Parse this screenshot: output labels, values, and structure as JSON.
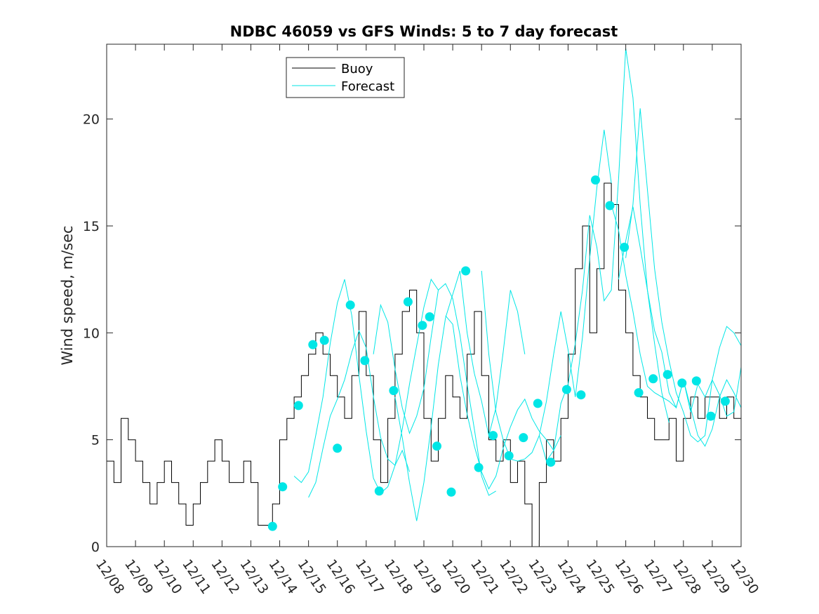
{
  "chart_data": {
    "type": "line",
    "title": "NDBC 46059 vs GFS Winds: 5 to 7 day forecast",
    "xlabel": "",
    "ylabel": "Wind speed, m/sec",
    "xlim": [
      0,
      22
    ],
    "ylim": [
      0,
      23.5
    ],
    "x_tick_labels": [
      "12/08",
      "12/09",
      "12/10",
      "12/11",
      "12/12",
      "12/13",
      "12/14",
      "12/15",
      "12/16",
      "12/17",
      "12/18",
      "12/19",
      "12/20",
      "12/21",
      "12/22",
      "12/23",
      "12/24",
      "12/25",
      "12/26",
      "12/27",
      "12/28",
      "12/29",
      "12/30"
    ],
    "y_ticks": [
      0,
      5,
      10,
      15,
      20
    ],
    "grid": false,
    "legend_position": "top-left",
    "colors": {
      "buoy": "#000000",
      "forecast": "#00e6e6",
      "axis": "#262626"
    },
    "buoy_series": {
      "name": "Buoy",
      "x": [
        0.0,
        0.25,
        0.5,
        0.75,
        1.0,
        1.25,
        1.5,
        1.75,
        2.0,
        2.25,
        2.5,
        2.75,
        3.0,
        3.25,
        3.5,
        3.75,
        4.0,
        4.25,
        4.5,
        4.75,
        5.0,
        5.25,
        5.5,
        5.75,
        6.0,
        6.25,
        6.5,
        6.75,
        7.0,
        7.25,
        7.5,
        7.75,
        8.0,
        8.25,
        8.5,
        8.75,
        9.0,
        9.25,
        9.5,
        9.75,
        10.0,
        10.25,
        10.5,
        10.75,
        11.0,
        11.25,
        11.5,
        11.75,
        12.0,
        12.25,
        12.5,
        12.75,
        13.0,
        13.25,
        13.5,
        13.75,
        14.0,
        14.25,
        14.5,
        14.75,
        15.0,
        15.25,
        15.5,
        15.75,
        16.0,
        16.25,
        16.5,
        16.75,
        17.0,
        17.25,
        17.5,
        17.75,
        18.0,
        18.25,
        18.5,
        18.75,
        19.0,
        19.25,
        19.5,
        19.75,
        20.0,
        20.25,
        20.5,
        20.75,
        21.0,
        21.25,
        21.5,
        21.75,
        22.0
      ],
      "values": [
        4,
        3,
        6,
        5,
        4,
        3,
        2,
        3,
        4,
        3,
        2,
        1,
        2,
        3,
        4,
        5,
        4,
        3,
        3,
        4,
        3,
        1,
        1,
        2,
        5,
        6,
        7,
        8,
        9,
        10,
        9,
        8,
        7,
        6,
        8,
        11,
        8,
        5,
        3,
        6,
        9,
        11,
        12,
        10,
        6,
        4,
        6,
        8,
        7,
        6,
        9,
        11,
        8,
        5,
        4,
        5,
        3,
        4,
        2,
        0,
        3,
        5,
        4,
        6,
        9,
        13,
        15,
        10,
        13,
        17,
        16,
        12,
        10,
        8,
        7,
        6,
        5,
        5,
        6,
        4,
        6,
        7,
        6,
        7,
        7,
        6,
        7,
        6,
        7
      ]
    },
    "forecast_series": [
      {
        "name": "Forecast",
        "x": [
          6.5,
          6.75,
          7.0,
          7.25,
          7.5,
          7.75,
          8.0,
          8.25,
          8.5,
          8.75,
          9.0,
          9.25,
          9.5,
          9.75,
          10.0,
          10.25,
          10.5
        ],
        "values": [
          3.3,
          3.0,
          3.5,
          5.2,
          7.0,
          9.5,
          11.4,
          12.5,
          10.8,
          8.0,
          5.4,
          3.2,
          2.5,
          2.8,
          3.8,
          4.5,
          3.5
        ]
      },
      {
        "name": "Forecast",
        "x": [
          7.0,
          7.25,
          7.5,
          7.75,
          8.0,
          8.25,
          8.5,
          8.75,
          9.0,
          9.25,
          9.5,
          9.75,
          10.0,
          10.25,
          10.5,
          10.75,
          11.0,
          11.25,
          11.5
        ],
        "values": [
          2.3,
          3.0,
          4.6,
          6.1,
          6.9,
          7.8,
          9.1,
          10.1,
          9.3,
          7.0,
          5.1,
          4.1,
          3.8,
          5.5,
          7.6,
          9.4,
          11.2,
          12.5,
          12.0
        ]
      },
      {
        "name": "Forecast",
        "x": [
          9.25,
          9.5,
          9.75,
          10.0,
          10.25,
          10.5,
          10.75,
          11.0,
          11.25,
          11.5,
          11.75,
          12.0,
          12.25,
          12.5,
          12.75,
          13.0,
          13.25,
          13.5
        ],
        "values": [
          9.0,
          11.3,
          10.5,
          8.3,
          6.5,
          5.3,
          6.1,
          7.4,
          9.8,
          12.0,
          12.3,
          11.6,
          9.9,
          7.6,
          5.5,
          3.3,
          2.4,
          2.6
        ]
      },
      {
        "name": "Forecast",
        "x": [
          10.0,
          10.25,
          10.5,
          10.75,
          11.0,
          11.25,
          11.5,
          11.75,
          12.0,
          12.25,
          12.5,
          12.75,
          13.0,
          13.25,
          13.5,
          13.75,
          14.0,
          14.25,
          14.5
        ],
        "values": [
          7.0,
          5.1,
          3.0,
          1.2,
          3.0,
          5.6,
          8.5,
          10.7,
          11.8,
          12.9,
          10.0,
          8.1,
          6.8,
          5.2,
          6.5,
          9.1,
          12.0,
          11.0,
          9.0
        ]
      },
      {
        "name": "Forecast",
        "x": [
          11.75,
          12.0,
          12.25,
          12.5,
          12.75,
          13.0,
          13.25,
          13.5,
          13.75,
          14.0,
          14.25,
          14.5,
          14.75,
          15.0,
          15.25,
          15.5,
          15.75
        ],
        "values": [
          10.8,
          10.4,
          8.0,
          6.2,
          4.7,
          3.5,
          2.7,
          3.3,
          4.6,
          5.6,
          6.4,
          6.9,
          6.0,
          5.4,
          5.0,
          4.5,
          5.2
        ]
      },
      {
        "name": "Forecast",
        "x": [
          13.0,
          13.25,
          13.5,
          13.75,
          14.0,
          14.25,
          14.5,
          14.75,
          15.0,
          15.25,
          15.5,
          15.75,
          16.0,
          16.25,
          16.5,
          16.75,
          17.0,
          17.25,
          17.5
        ],
        "values": [
          12.9,
          9.0,
          6.3,
          5.0,
          4.1,
          4.0,
          4.1,
          4.4,
          5.2,
          6.8,
          9.0,
          11.0,
          9.2,
          7.0,
          9.8,
          13.5,
          16.8,
          19.5,
          17.0
        ]
      },
      {
        "name": "Forecast",
        "x": [
          15.0,
          15.25,
          15.5,
          15.75,
          16.0,
          16.25,
          16.5,
          16.75,
          17.0,
          17.25,
          17.5,
          17.75,
          18.0,
          18.25,
          18.5,
          18.75,
          19.0,
          19.25,
          19.5
        ],
        "values": [
          5.2,
          4.0,
          4.5,
          6.7,
          7.6,
          9.5,
          12.0,
          15.5,
          14.0,
          11.5,
          12.0,
          17.2,
          23.3,
          21.0,
          16.0,
          12.0,
          9.5,
          7.2,
          5.8
        ]
      },
      {
        "name": "Forecast",
        "x": [
          17.5,
          17.75,
          18.0,
          18.25,
          18.5,
          18.75,
          19.0,
          19.25,
          19.5,
          19.75,
          20.0,
          20.25,
          20.5,
          20.75,
          21.0,
          21.25,
          21.5,
          21.75,
          22.0
        ],
        "values": [
          16.0,
          14.8,
          12.7,
          11.0,
          9.0,
          7.5,
          7.2,
          7.0,
          6.8,
          6.5,
          7.8,
          6.5,
          5.2,
          4.7,
          5.5,
          7.0,
          7.8,
          7.2,
          6.5
        ]
      },
      {
        "name": "Forecast",
        "x": [
          18.0,
          18.25,
          18.5,
          18.75,
          19.0,
          19.25,
          19.5,
          19.75,
          20.0,
          20.25,
          20.5,
          20.75,
          21.0,
          21.25,
          21.5,
          21.75,
          22.0
        ],
        "values": [
          13.5,
          16.0,
          20.5,
          16.7,
          13.0,
          10.5,
          8.7,
          7.2,
          6.3,
          5.2,
          4.9,
          5.2,
          7.8,
          9.3,
          10.3,
          10.0,
          9.4
        ]
      },
      {
        "name": "Forecast",
        "x": [
          17.75,
          18.0,
          18.25,
          18.5,
          18.75,
          19.0,
          19.25,
          19.5,
          19.75,
          20.0,
          20.25,
          20.5,
          20.75,
          21.0,
          21.25,
          21.5,
          21.75,
          22.0
        ],
        "values": [
          12.5,
          14.3,
          15.9,
          14.0,
          12.0,
          10.1,
          9.1,
          7.2,
          6.5,
          7.8,
          6.3,
          7.6,
          7.0,
          7.8,
          7.1,
          6.1,
          6.3,
          8.4
        ]
      }
    ],
    "forecast_markers": {
      "x": [
        5.75,
        6.1,
        6.65,
        7.15,
        7.55,
        8.0,
        8.45,
        8.95,
        9.45,
        9.95,
        10.45,
        10.95,
        11.2,
        11.45,
        11.95,
        12.45,
        12.9,
        13.4,
        13.95,
        14.45,
        14.95,
        15.4,
        15.95,
        16.45,
        16.95,
        17.45,
        17.95,
        18.45,
        18.95,
        19.45,
        19.95,
        20.45,
        20.95,
        21.45
      ],
      "values": [
        0.95,
        2.8,
        6.6,
        9.45,
        9.65,
        4.6,
        11.3,
        8.7,
        2.6,
        7.3,
        11.45,
        10.35,
        10.75,
        4.7,
        2.55,
        12.9,
        3.7,
        5.2,
        4.25,
        5.1,
        6.7,
        3.95,
        7.35,
        7.1,
        17.15,
        15.95,
        14.0,
        7.2,
        7.85,
        8.05,
        7.65,
        7.75,
        6.1,
        6.8
      ]
    },
    "legend": [
      {
        "label": "Buoy",
        "series": "buoy"
      },
      {
        "label": "Forecast",
        "series": "forecast"
      }
    ]
  }
}
